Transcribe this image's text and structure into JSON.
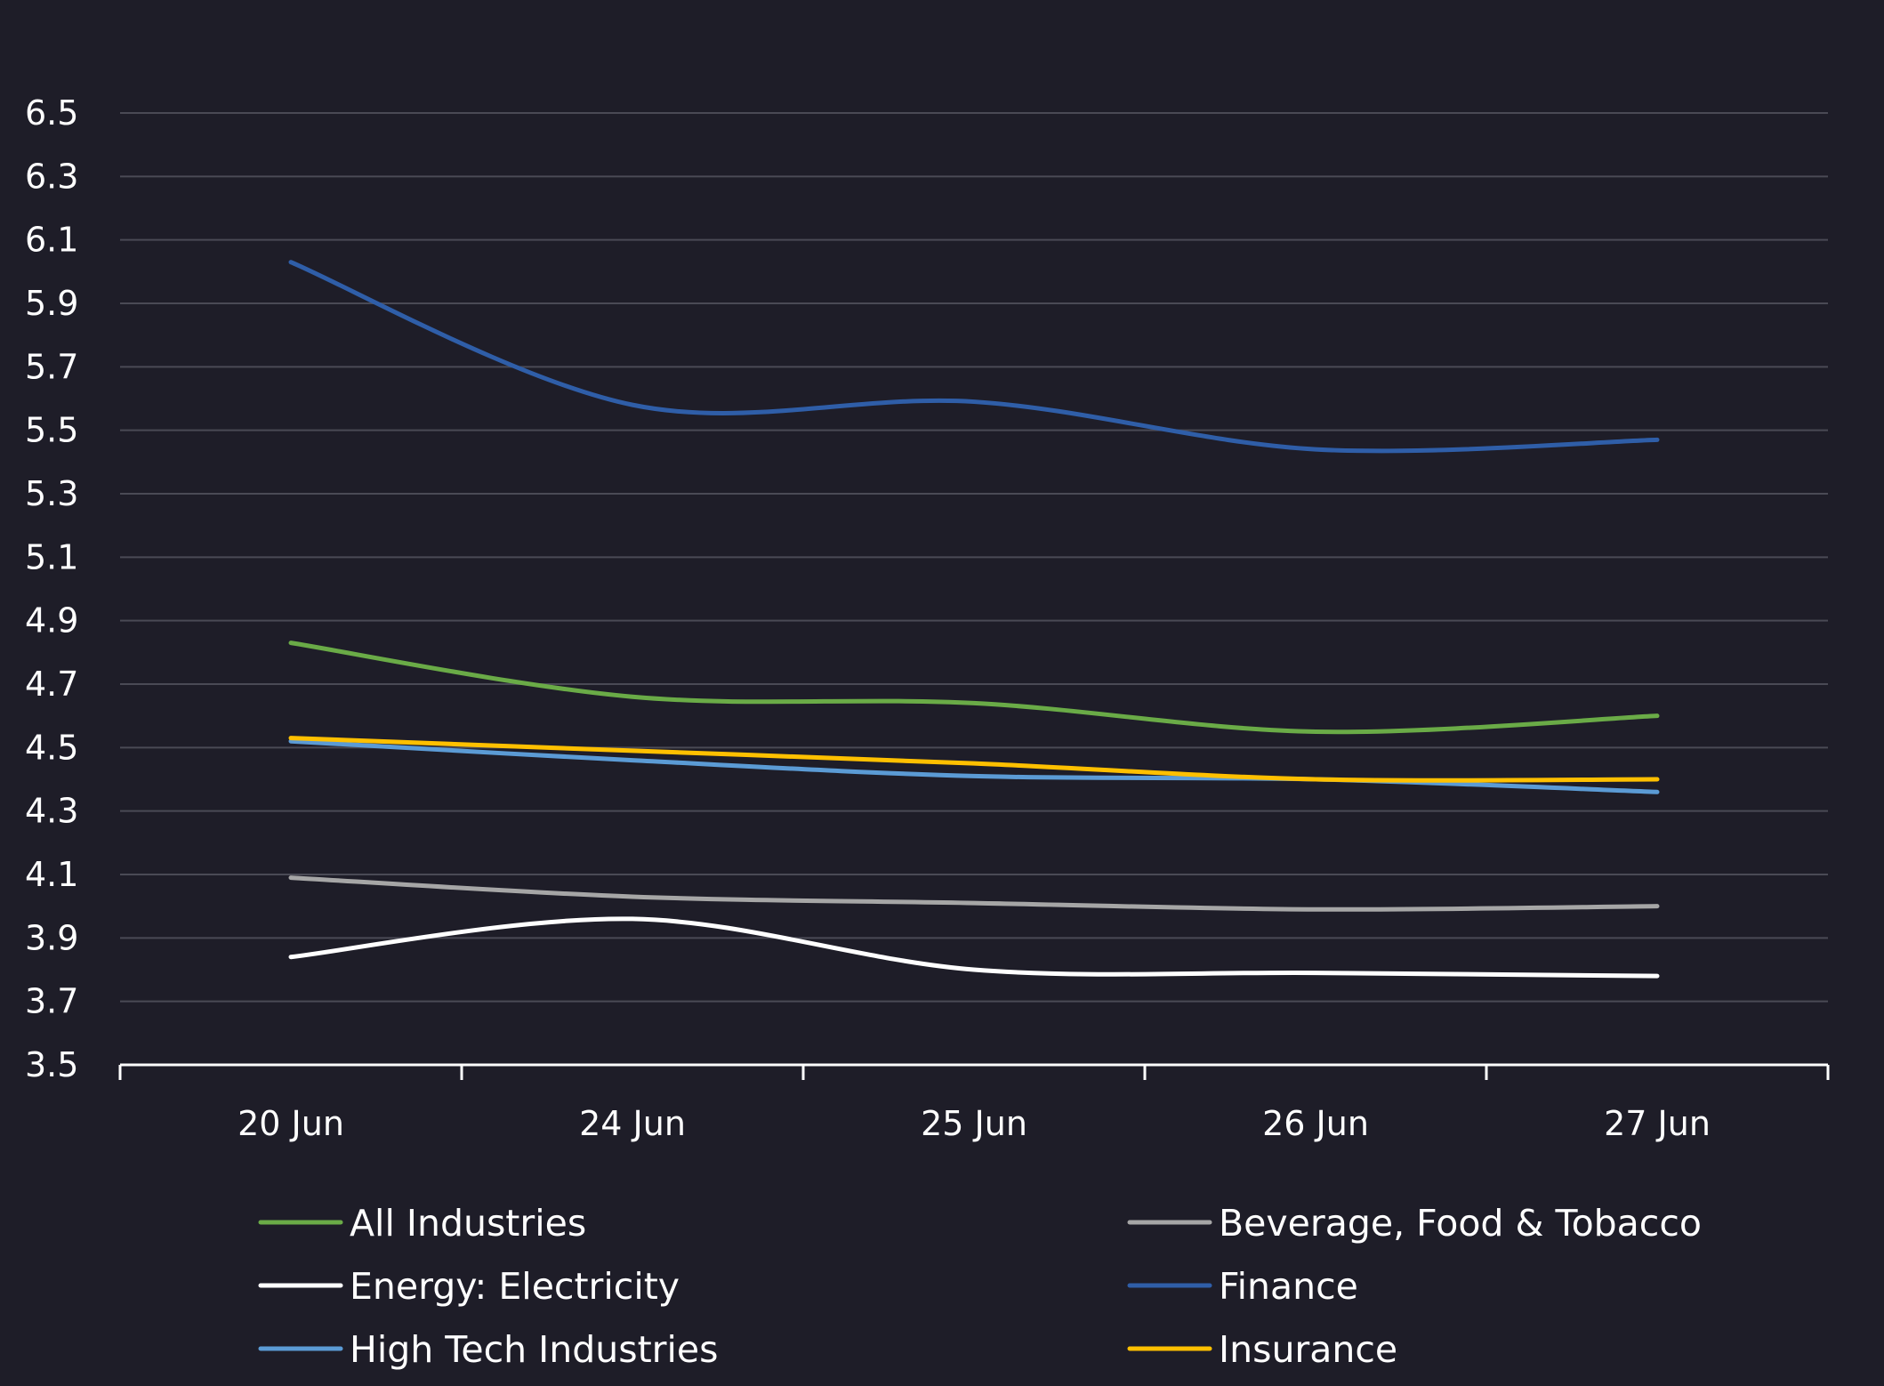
{
  "chart_data": {
    "type": "line",
    "categories": [
      "20 Jun",
      "24 Jun",
      "25 Jun",
      "26 Jun",
      "27 Jun"
    ],
    "ylim": [
      3.5,
      6.5
    ],
    "yticks": [
      "3.5",
      "3.7",
      "3.9",
      "4.1",
      "4.3",
      "4.5",
      "4.7",
      "4.9",
      "5.1",
      "5.3",
      "5.5",
      "5.7",
      "5.9",
      "6.1",
      "6.3",
      "6.5"
    ],
    "grid": true,
    "legend_position": "bottom",
    "series": [
      {
        "name": "All Industries",
        "color": "#6aab47",
        "values": [
          4.83,
          4.66,
          4.64,
          4.55,
          4.6
        ]
      },
      {
        "name": "Beverage, Food & Tobacco",
        "color": "#a6a6a6",
        "values": [
          4.09,
          4.03,
          4.01,
          3.99,
          4.0
        ]
      },
      {
        "name": "Energy: Electricity",
        "color": "#ffffff",
        "values": [
          3.84,
          3.96,
          3.8,
          3.79,
          3.78
        ]
      },
      {
        "name": "Finance",
        "color": "#2f5ea8",
        "values": [
          6.03,
          5.58,
          5.59,
          5.44,
          5.47
        ]
      },
      {
        "name": "High Tech Industries",
        "color": "#5b9bd5",
        "values": [
          4.52,
          4.46,
          4.41,
          4.4,
          4.36
        ]
      },
      {
        "name": "Insurance",
        "color": "#ffc000",
        "values": [
          4.53,
          4.49,
          4.45,
          4.4,
          4.4
        ]
      }
    ]
  }
}
